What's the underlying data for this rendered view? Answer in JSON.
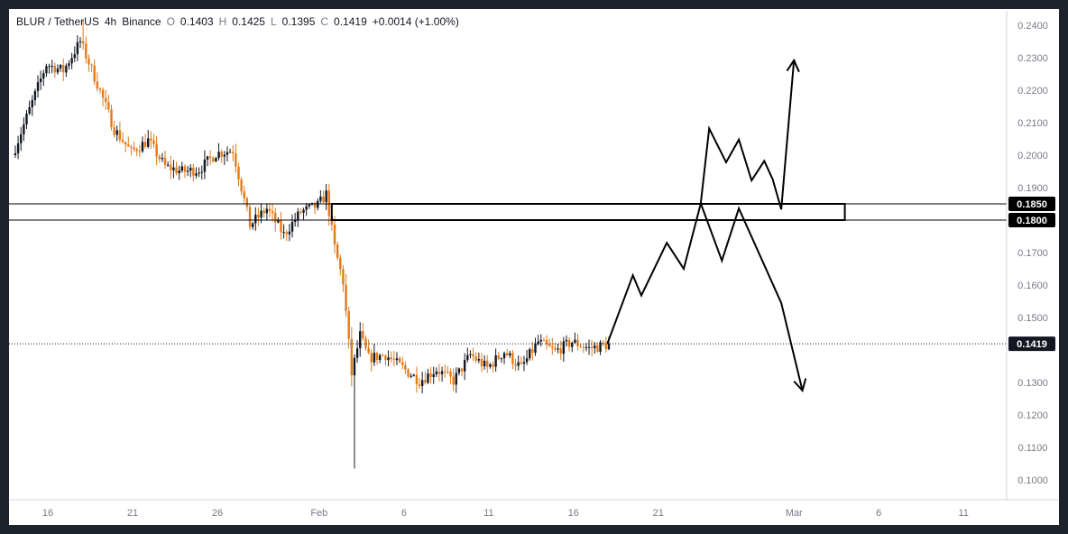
{
  "header": {
    "symbol": "BLUR / TetherUS",
    "interval": "4h",
    "exchange": "Binance",
    "open_label": "O",
    "open": "0.1403",
    "high_label": "H",
    "high": "0.1425",
    "low_label": "L",
    "low": "0.1395",
    "close_label": "C",
    "close": "0.1419",
    "change": "+0.0014 (+1.00%)"
  },
  "colors": {
    "frame": "#1e222d",
    "background": "#ffffff",
    "candle_up": "#131722",
    "candle_down": "#e07b1b",
    "projection": "#000000",
    "last_price_badge": "#131722",
    "level_badge": "#000000",
    "axis_text": "#787b86"
  },
  "chart_data": {
    "type": "candlestick",
    "title": "BLUR / TetherUS, 4h, Binance",
    "price_axis": {
      "ticks": [
        0.24,
        0.23,
        0.22,
        0.21,
        0.2,
        0.19,
        0.17,
        0.16,
        0.15,
        0.13,
        0.12,
        0.11,
        0.1
      ],
      "tick_labels": [
        "0.2400",
        "0.2300",
        "0.2200",
        "0.2100",
        "0.2000",
        "0.1900",
        "0.1700",
        "0.1600",
        "0.1500",
        "0.1300",
        "0.1200",
        "0.1100",
        "0.1000"
      ],
      "ylim": [
        0.0965,
        0.2427
      ]
    },
    "time_axis": {
      "ticks": [
        "16",
        "21",
        "26",
        "Feb",
        "6",
        "11",
        "16",
        "21",
        "Mar",
        "6",
        "11"
      ],
      "tick_dates": [
        "2023-01-16",
        "2023-01-21",
        "2023-01-26",
        "2023-02-01",
        "2023-02-06",
        "2023-02-11",
        "2023-02-16",
        "2023-02-21",
        "2023-03-01",
        "2023-03-06",
        "2023-03-11"
      ],
      "xlim": [
        "2023-01-14",
        "2023-03-15"
      ]
    },
    "last_price": 0.1419,
    "last_price_label": "0.1419",
    "levels": [
      {
        "label": "0.1850",
        "value": 0.185
      },
      {
        "label": "0.1800",
        "value": 0.18
      }
    ],
    "zone": {
      "x_from": "2023-02-01",
      "x_to": "2023-03-04",
      "y_from": 0.18,
      "y_to": 0.185
    },
    "price_path": [
      [
        "2023-01-14",
        0.2
      ],
      [
        "2023-01-15",
        0.214
      ],
      [
        "2023-01-16",
        0.228
      ],
      [
        "2023-01-17",
        0.226
      ],
      [
        "2023-01-18",
        0.235
      ],
      [
        "2023-01-19",
        0.222
      ],
      [
        "2023-01-20",
        0.208
      ],
      [
        "2023-01-21",
        0.201
      ],
      [
        "2023-01-22",
        0.2045
      ],
      [
        "2023-01-23",
        0.1965
      ],
      [
        "2023-01-24",
        0.195
      ],
      [
        "2023-01-25",
        0.1955
      ],
      [
        "2023-01-26",
        0.2005
      ],
      [
        "2023-01-27",
        0.2015
      ],
      [
        "2023-01-28",
        0.1785
      ],
      [
        "2023-01-29",
        0.1835
      ],
      [
        "2023-01-30",
        0.1755
      ],
      [
        "2023-01-31",
        0.1825
      ],
      [
        "2023-02-01",
        0.1845
      ],
      [
        "2023-02-01T12:00",
        0.188
      ],
      [
        "2023-02-02",
        0.1715
      ],
      [
        "2023-02-02T12:00",
        0.161
      ],
      [
        "2023-02-03",
        0.1325
      ],
      [
        "2023-02-03T12:00",
        0.1445
      ],
      [
        "2023-02-04",
        0.1375
      ],
      [
        "2023-02-05",
        0.1385
      ],
      [
        "2023-02-06",
        0.1345
      ],
      [
        "2023-02-07",
        0.1305
      ],
      [
        "2023-02-08",
        0.134
      ],
      [
        "2023-02-09",
        0.1305
      ],
      [
        "2023-02-10",
        0.1385
      ],
      [
        "2023-02-11",
        0.1345
      ],
      [
        "2023-02-12",
        0.1395
      ],
      [
        "2023-02-13",
        0.1345
      ],
      [
        "2023-02-14",
        0.1425
      ],
      [
        "2023-02-15",
        0.1395
      ],
      [
        "2023-02-16",
        0.1425
      ],
      [
        "2023-02-17",
        0.1405
      ],
      [
        "2023-02-18",
        0.1415
      ]
    ],
    "candle_extremes": {
      "high": 0.2415,
      "low": 0.1035
    },
    "projections": [
      {
        "direction": "up",
        "points": [
          [
            "2023-02-18",
            0.142
          ],
          [
            "2023-02-19T12:00",
            0.163
          ],
          [
            "2023-02-20",
            0.1568
          ],
          [
            "2023-02-21T12:00",
            0.173
          ],
          [
            "2023-02-22T12:00",
            0.165
          ],
          [
            "2023-02-23T12:00",
            0.185
          ],
          [
            "2023-02-24",
            0.2082
          ],
          [
            "2023-02-25",
            0.1978
          ],
          [
            "2023-02-25T18:00",
            0.2048
          ],
          [
            "2023-02-26T12:00",
            0.1922
          ],
          [
            "2023-02-27T06:00",
            0.1982
          ],
          [
            "2023-02-27T18:00",
            0.1925
          ],
          [
            "2023-02-28T06:00",
            0.1833
          ],
          [
            "2023-03-01",
            0.2292
          ]
        ]
      },
      {
        "direction": "down",
        "points": [
          [
            "2023-02-23T12:00",
            0.1852
          ],
          [
            "2023-02-24T18:00",
            0.1675
          ],
          [
            "2023-02-25T18:00",
            0.1836
          ],
          [
            "2023-02-28T06:00",
            0.1545
          ],
          [
            "2023-03-01T12:00",
            0.1275
          ]
        ]
      }
    ]
  }
}
